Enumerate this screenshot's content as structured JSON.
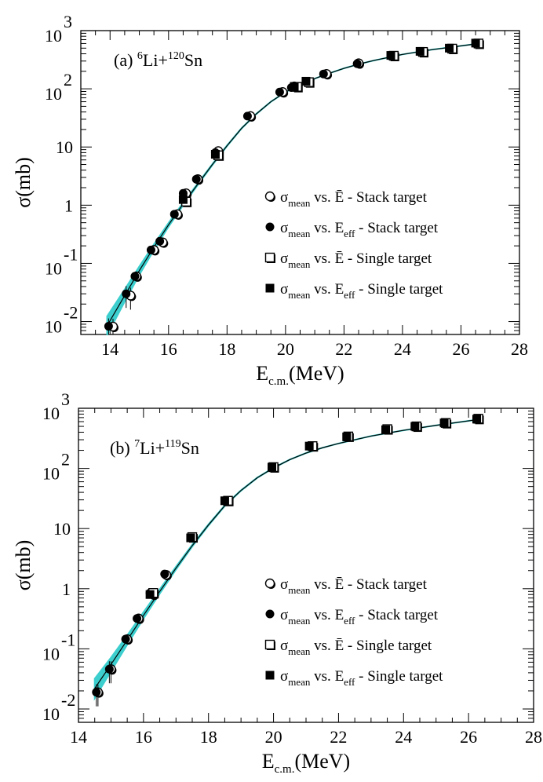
{
  "chart_data": [
    {
      "type": "scatter",
      "panel_label": "(a)",
      "reaction": {
        "a1": "6",
        "s1": "Li+",
        "a2": "120",
        "s2": "Sn"
      },
      "xlabel": {
        "main": "E",
        "sub": "c.m.",
        "unit": "(MeV)"
      },
      "ylabel": "σ(mb)",
      "xlim": [
        13,
        28
      ],
      "ylog": true,
      "ylim": [
        0.006,
        1000
      ],
      "xticks": [
        "14",
        "16",
        "18",
        "20",
        "22",
        "24",
        "26",
        "28"
      ],
      "yticks": [
        {
          "value": 0.01,
          "base": "10",
          "exp": "-2"
        },
        {
          "value": 0.1,
          "base": "10",
          "exp": "-1"
        },
        {
          "value": 1,
          "base": "1",
          "exp": ""
        },
        {
          "value": 10,
          "base": "10",
          "exp": ""
        },
        {
          "value": 100,
          "base": "10",
          "exp": "2"
        },
        {
          "value": 1000,
          "base": "10",
          "exp": "3"
        }
      ],
      "fit_band_color": "#33cccc",
      "fit_line_color": "#000000",
      "fit_curve": {
        "x": [
          13.9,
          14.5,
          15.0,
          15.5,
          16.0,
          16.5,
          17.0,
          17.5,
          18.0,
          18.5,
          19.0,
          19.5,
          20.0,
          20.5,
          21.0,
          21.5,
          22.0,
          22.5,
          23.0,
          24.0,
          25.0,
          26.5
        ],
        "y": [
          0.0085,
          0.028,
          0.075,
          0.19,
          0.46,
          1.05,
          2.3,
          5.0,
          10.5,
          21,
          37,
          60,
          88,
          118,
          150,
          185,
          225,
          265,
          305,
          390,
          470,
          590
        ]
      },
      "series": [
        {
          "name": "σ_mean vs. Ē - Stack target",
          "marker": "open-circle",
          "x": [
            14.1,
            14.7,
            14.9,
            15.5,
            15.8,
            16.3,
            16.6,
            17.0,
            17.7,
            18.8,
            19.9,
            20.3,
            21.4,
            22.5
          ],
          "y": [
            0.0082,
            0.028,
            0.06,
            0.17,
            0.23,
            0.7,
            1.6,
            2.8,
            8.5,
            34,
            88,
            110,
            180,
            275
          ]
        },
        {
          "name": "σ_mean vs. E_eff - Stack target",
          "marker": "filled-circle",
          "x": [
            13.95,
            14.55,
            14.85,
            15.4,
            15.7,
            16.2,
            16.5,
            16.95,
            17.6,
            18.7,
            19.8,
            20.2,
            21.3,
            22.45
          ],
          "y": [
            0.0083,
            0.03,
            0.06,
            0.17,
            0.24,
            0.7,
            1.6,
            2.8,
            8.0,
            34,
            88,
            105,
            180,
            270
          ]
        },
        {
          "name": "σ_mean vs. Ē - Single target",
          "marker": "open-square",
          "x": [
            16.6,
            17.7,
            20.4,
            20.8,
            23.7,
            24.7,
            25.7,
            26.6
          ],
          "y": [
            1.15,
            7.2,
            108,
            130,
            370,
            430,
            490,
            600
          ]
        },
        {
          "name": "σ_mean vs. E_eff - Single target",
          "marker": "filled-square",
          "x": [
            16.5,
            17.6,
            20.3,
            20.7,
            23.6,
            24.6,
            25.6,
            26.5
          ],
          "y": [
            1.25,
            7.5,
            110,
            135,
            375,
            440,
            500,
            610
          ]
        }
      ]
    },
    {
      "type": "scatter",
      "panel_label": "(b)",
      "reaction": {
        "a1": "7",
        "s1": "Li+",
        "a2": "119",
        "s2": "Sn"
      },
      "xlabel": {
        "main": "E",
        "sub": "c.m.",
        "unit": "(MeV)"
      },
      "ylabel": "σ(mb)",
      "xlim": [
        14,
        28
      ],
      "ylog": true,
      "ylim": [
        0.006,
        1000
      ],
      "xticks": [
        "14",
        "16",
        "18",
        "20",
        "22",
        "24",
        "26",
        "28"
      ],
      "yticks": [
        {
          "value": 0.01,
          "base": "10",
          "exp": "-2"
        },
        {
          "value": 0.1,
          "base": "10",
          "exp": "-1"
        },
        {
          "value": 1,
          "base": "1",
          "exp": ""
        },
        {
          "value": 10,
          "base": "10",
          "exp": ""
        },
        {
          "value": 100,
          "base": "10",
          "exp": "2"
        },
        {
          "value": 1000,
          "base": "10",
          "exp": "3"
        }
      ],
      "fit_band_color": "#33cccc",
      "fit_line_color": "#000000",
      "fit_curve": {
        "x": [
          14.5,
          15.0,
          15.5,
          16.0,
          16.5,
          17.0,
          17.5,
          18.0,
          18.5,
          19.0,
          19.5,
          20.0,
          20.5,
          21.0,
          21.5,
          22.0,
          23.0,
          24.0,
          25.0,
          26.3
        ],
        "y": [
          0.022,
          0.055,
          0.14,
          0.36,
          0.9,
          2.2,
          5.2,
          11.5,
          24,
          43,
          70,
          102,
          140,
          180,
          220,
          260,
          345,
          430,
          520,
          650
        ]
      },
      "series": [
        {
          "name": "σ_mean vs. Ē - Stack target",
          "marker": "open-circle",
          "x": [
            14.6,
            15.0,
            15.5,
            15.85,
            16.3,
            16.7
          ],
          "y": [
            0.019,
            0.046,
            0.145,
            0.32,
            0.8,
            1.7
          ]
        },
        {
          "name": "σ_mean vs. E_eff - Stack target",
          "marker": "filled-circle",
          "x": [
            14.55,
            14.95,
            15.45,
            15.8,
            16.2,
            16.65
          ],
          "y": [
            0.019,
            0.046,
            0.145,
            0.32,
            0.85,
            1.75
          ]
        },
        {
          "name": "σ_mean vs. Ē - Single target",
          "marker": "open-square",
          "x": [
            16.3,
            17.5,
            18.6,
            20.0,
            21.2,
            22.3,
            23.5,
            24.4,
            25.3,
            26.3
          ],
          "y": [
            0.85,
            7.2,
            29,
            105,
            235,
            340,
            450,
            500,
            570,
            670
          ]
        },
        {
          "name": "σ_mean vs. E_eff - Single target",
          "marker": "filled-square",
          "x": [
            16.2,
            17.45,
            18.5,
            19.95,
            21.1,
            22.25,
            23.45,
            24.35,
            25.25,
            26.25
          ],
          "y": [
            0.8,
            7.0,
            29,
            105,
            235,
            335,
            440,
            500,
            570,
            660
          ]
        }
      ]
    }
  ],
  "legend": [
    {
      "sym": "σ",
      "sub": "mean",
      "mid": " vs. ",
      "e": "Ē",
      "esub": "",
      "tail": " - Stack target",
      "marker": "open-circle"
    },
    {
      "sym": "σ",
      "sub": "mean",
      "mid": " vs. ",
      "e": "E",
      "esub": "eff",
      "tail": " - Stack target",
      "marker": "filled-circle"
    },
    {
      "sym": "σ",
      "sub": "mean",
      "mid": " vs. ",
      "e": "Ē",
      "esub": "",
      "tail": " - Single target",
      "marker": "open-square"
    },
    {
      "sym": "σ",
      "sub": "mean",
      "mid": " vs. ",
      "e": "E",
      "esub": "eff",
      "tail": " - Single target",
      "marker": "filled-square"
    }
  ]
}
